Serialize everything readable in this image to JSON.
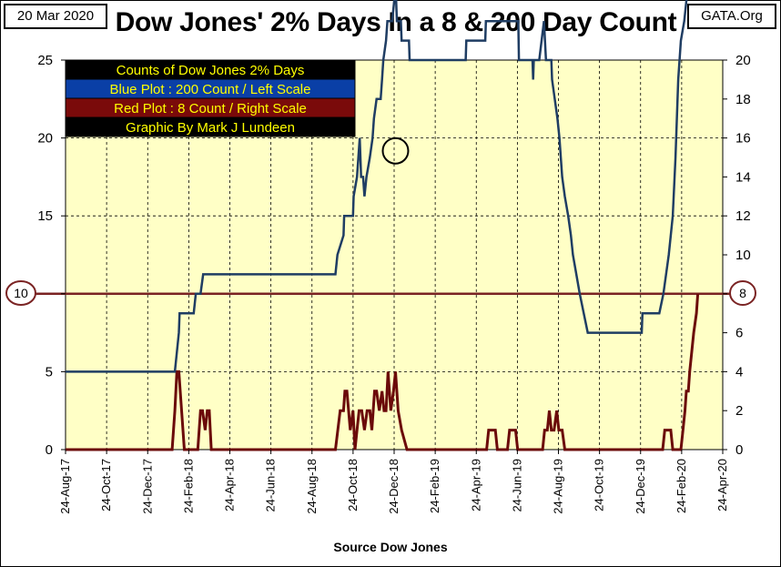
{
  "header": {
    "date": "20 Mar 2020",
    "title": "Dow Jones' 2% Days In a 8 & 200 Day Count",
    "source": "GATA.Org"
  },
  "legend": {
    "lines": [
      {
        "text": "Counts of Dow Jones 2% Days",
        "bg": "#000000",
        "fg": "#ffff00"
      },
      {
        "text": "Blue Plot : 200 Count / Left Scale",
        "bg": "#0a3fa6",
        "fg": "#ffff00"
      },
      {
        "text": "Red Plot : 8 Count / Right Scale",
        "bg": "#7a0a0a",
        "fg": "#ffff00"
      },
      {
        "text": "Graphic By Mark J Lundeen",
        "bg": "#000000",
        "fg": "#ffff00"
      }
    ]
  },
  "markers": {
    "left_value": "10",
    "right_value": "8"
  },
  "x_caption": "Source Dow Jones",
  "colors": {
    "plot_bg": "#ffffc6",
    "blue_line": "#1f3d63",
    "red_line": "#6b0a0a",
    "ref_line": "#7a2323"
  },
  "chart_data": {
    "type": "line",
    "x_ticks": [
      "24-Aug-17",
      "24-Oct-17",
      "24-Dec-17",
      "24-Feb-18",
      "24-Apr-18",
      "24-Jun-18",
      "24-Aug-18",
      "24-Oct-18",
      "24-Dec-18",
      "24-Feb-19",
      "24-Apr-19",
      "24-Jun-19",
      "24-Aug-19",
      "24-Oct-19",
      "24-Dec-19",
      "24-Feb-20",
      "24-Apr-20"
    ],
    "x_range": [
      "2017-08-24",
      "2020-04-24"
    ],
    "y_left": {
      "ticks": [
        "0",
        "5",
        "10",
        "15",
        "20",
        "25"
      ],
      "range": [
        0,
        25
      ]
    },
    "y_right": {
      "ticks": [
        "0",
        "2",
        "4",
        "6",
        "8",
        "10",
        "12",
        "14",
        "16",
        "18",
        "20"
      ],
      "range": [
        0,
        20
      ]
    },
    "reference_line": {
      "left_value": 10,
      "right_value": 8
    },
    "highlight": {
      "date": "2018-12-26",
      "value": 19
    },
    "series": [
      {
        "axis": "left",
        "color": "#1f3d63",
        "points": [
          [
            "2017-08-24",
            4
          ],
          [
            "2018-02-02",
            4
          ],
          [
            "2018-02-05",
            5
          ],
          [
            "2018-02-08",
            6
          ],
          [
            "2018-02-09",
            7
          ],
          [
            "2018-03-02",
            7
          ],
          [
            "2018-03-05",
            8
          ],
          [
            "2018-03-12",
            8
          ],
          [
            "2018-03-16",
            9
          ],
          [
            "2018-04-28",
            9
          ],
          [
            "2018-04-29",
            9
          ],
          [
            "2018-09-28",
            9
          ],
          [
            "2018-10-01",
            10
          ],
          [
            "2018-10-10",
            11
          ],
          [
            "2018-10-11",
            12
          ],
          [
            "2018-10-24",
            12
          ],
          [
            "2018-10-25",
            13
          ],
          [
            "2018-10-30",
            14
          ],
          [
            "2018-11-01",
            15
          ],
          [
            "2018-11-03",
            16
          ],
          [
            "2018-11-05",
            14
          ],
          [
            "2018-11-08",
            14
          ],
          [
            "2018-11-10",
            13
          ],
          [
            "2018-11-13",
            14
          ],
          [
            "2018-11-18",
            15
          ],
          [
            "2018-11-22",
            16
          ],
          [
            "2018-11-24",
            17
          ],
          [
            "2018-11-28",
            18
          ],
          [
            "2018-12-04",
            18
          ],
          [
            "2018-12-06",
            19
          ],
          [
            "2018-12-08",
            20
          ],
          [
            "2018-12-12",
            21
          ],
          [
            "2018-12-14",
            22
          ],
          [
            "2018-12-21",
            22
          ],
          [
            "2018-12-24",
            23
          ],
          [
            "2018-12-26",
            24
          ],
          [
            "2018-12-28",
            22
          ],
          [
            "2019-01-03",
            22
          ],
          [
            "2019-01-04",
            21
          ],
          [
            "2019-01-15",
            21
          ],
          [
            "2019-01-16",
            20
          ],
          [
            "2019-04-09",
            20
          ],
          [
            "2019-04-10",
            21
          ],
          [
            "2019-05-08",
            21
          ],
          [
            "2019-05-09",
            22
          ],
          [
            "2019-06-26",
            22
          ],
          [
            "2019-06-27",
            20
          ],
          [
            "2019-07-17",
            20
          ],
          [
            "2019-07-18",
            19
          ],
          [
            "2019-07-19",
            20
          ],
          [
            "2019-07-27",
            20
          ],
          [
            "2019-08-03",
            22
          ],
          [
            "2019-08-06",
            20
          ],
          [
            "2019-08-14",
            20
          ],
          [
            "2019-08-15",
            19
          ],
          [
            "2019-08-23",
            17
          ],
          [
            "2019-08-26",
            16
          ],
          [
            "2019-08-30",
            14
          ],
          [
            "2019-09-03",
            13
          ],
          [
            "2019-09-08",
            12
          ],
          [
            "2019-09-12",
            11
          ],
          [
            "2019-09-15",
            10
          ],
          [
            "2019-09-25",
            8
          ],
          [
            "2019-10-01",
            7
          ],
          [
            "2019-10-07",
            6
          ],
          [
            "2019-12-26",
            6
          ],
          [
            "2019-12-27",
            7
          ],
          [
            "2020-01-21",
            7
          ],
          [
            "2020-01-27",
            8
          ],
          [
            "2020-02-04",
            10
          ],
          [
            "2020-02-10",
            12
          ],
          [
            "2020-02-14",
            15
          ],
          [
            "2020-02-18",
            19
          ],
          [
            "2020-02-22",
            21
          ],
          [
            "2020-02-27",
            22
          ],
          [
            "2020-03-04",
            24
          ],
          [
            "2020-03-11",
            25
          ],
          [
            "2020-03-13",
            26
          ],
          [
            "2020-03-18",
            27
          ]
        ]
      },
      {
        "axis": "right",
        "color": "#6b0a0a",
        "points": [
          [
            "2017-08-24",
            0
          ],
          [
            "2018-01-29",
            0
          ],
          [
            "2018-02-02",
            2
          ],
          [
            "2018-02-05",
            4
          ],
          [
            "2018-02-08",
            4
          ],
          [
            "2018-02-12",
            2
          ],
          [
            "2018-02-16",
            0
          ],
          [
            "2018-03-08",
            0
          ],
          [
            "2018-03-12",
            2
          ],
          [
            "2018-03-15",
            2
          ],
          [
            "2018-03-19",
            1
          ],
          [
            "2018-03-22",
            2
          ],
          [
            "2018-03-25",
            2
          ],
          [
            "2018-03-28",
            0
          ],
          [
            "2018-09-28",
            0
          ],
          [
            "2018-10-05",
            2
          ],
          [
            "2018-10-10",
            2
          ],
          [
            "2018-10-12",
            3
          ],
          [
            "2018-10-15",
            3
          ],
          [
            "2018-10-20",
            1
          ],
          [
            "2018-10-24",
            2
          ],
          [
            "2018-10-27",
            0
          ],
          [
            "2018-10-30",
            1
          ],
          [
            "2018-11-02",
            2
          ],
          [
            "2018-11-06",
            2
          ],
          [
            "2018-11-10",
            1
          ],
          [
            "2018-11-14",
            2
          ],
          [
            "2018-11-18",
            2
          ],
          [
            "2018-11-21",
            1
          ],
          [
            "2018-11-25",
            3
          ],
          [
            "2018-11-28",
            3
          ],
          [
            "2018-12-02",
            2
          ],
          [
            "2018-12-06",
            3
          ],
          [
            "2018-12-09",
            2
          ],
          [
            "2018-12-12",
            2
          ],
          [
            "2018-12-15",
            4
          ],
          [
            "2018-12-19",
            2
          ],
          [
            "2018-12-23",
            3
          ],
          [
            "2018-12-26",
            4
          ],
          [
            "2018-12-30",
            2
          ],
          [
            "2019-01-04",
            1
          ],
          [
            "2019-01-12",
            0
          ],
          [
            "2019-05-10",
            0
          ],
          [
            "2019-05-13",
            1
          ],
          [
            "2019-05-23",
            1
          ],
          [
            "2019-05-26",
            0
          ],
          [
            "2019-06-10",
            0
          ],
          [
            "2019-06-13",
            1
          ],
          [
            "2019-06-22",
            1
          ],
          [
            "2019-06-25",
            0
          ],
          [
            "2019-08-01",
            0
          ],
          [
            "2019-08-04",
            1
          ],
          [
            "2019-08-08",
            1
          ],
          [
            "2019-08-11",
            2
          ],
          [
            "2019-08-14",
            1
          ],
          [
            "2019-08-18",
            1
          ],
          [
            "2019-08-22",
            2
          ],
          [
            "2019-08-25",
            1
          ],
          [
            "2019-08-30",
            1
          ],
          [
            "2019-09-03",
            0
          ],
          [
            "2020-01-26",
            0
          ],
          [
            "2020-01-29",
            1
          ],
          [
            "2020-02-07",
            1
          ],
          [
            "2020-02-10",
            0
          ],
          [
            "2020-02-22",
            0
          ],
          [
            "2020-02-25",
            1
          ],
          [
            "2020-02-28",
            2
          ],
          [
            "2020-03-01",
            3
          ],
          [
            "2020-03-04",
            3
          ],
          [
            "2020-03-06",
            4
          ],
          [
            "2020-03-09",
            5
          ],
          [
            "2020-03-12",
            6
          ],
          [
            "2020-03-16",
            7
          ],
          [
            "2020-03-18",
            8
          ]
        ]
      }
    ]
  }
}
